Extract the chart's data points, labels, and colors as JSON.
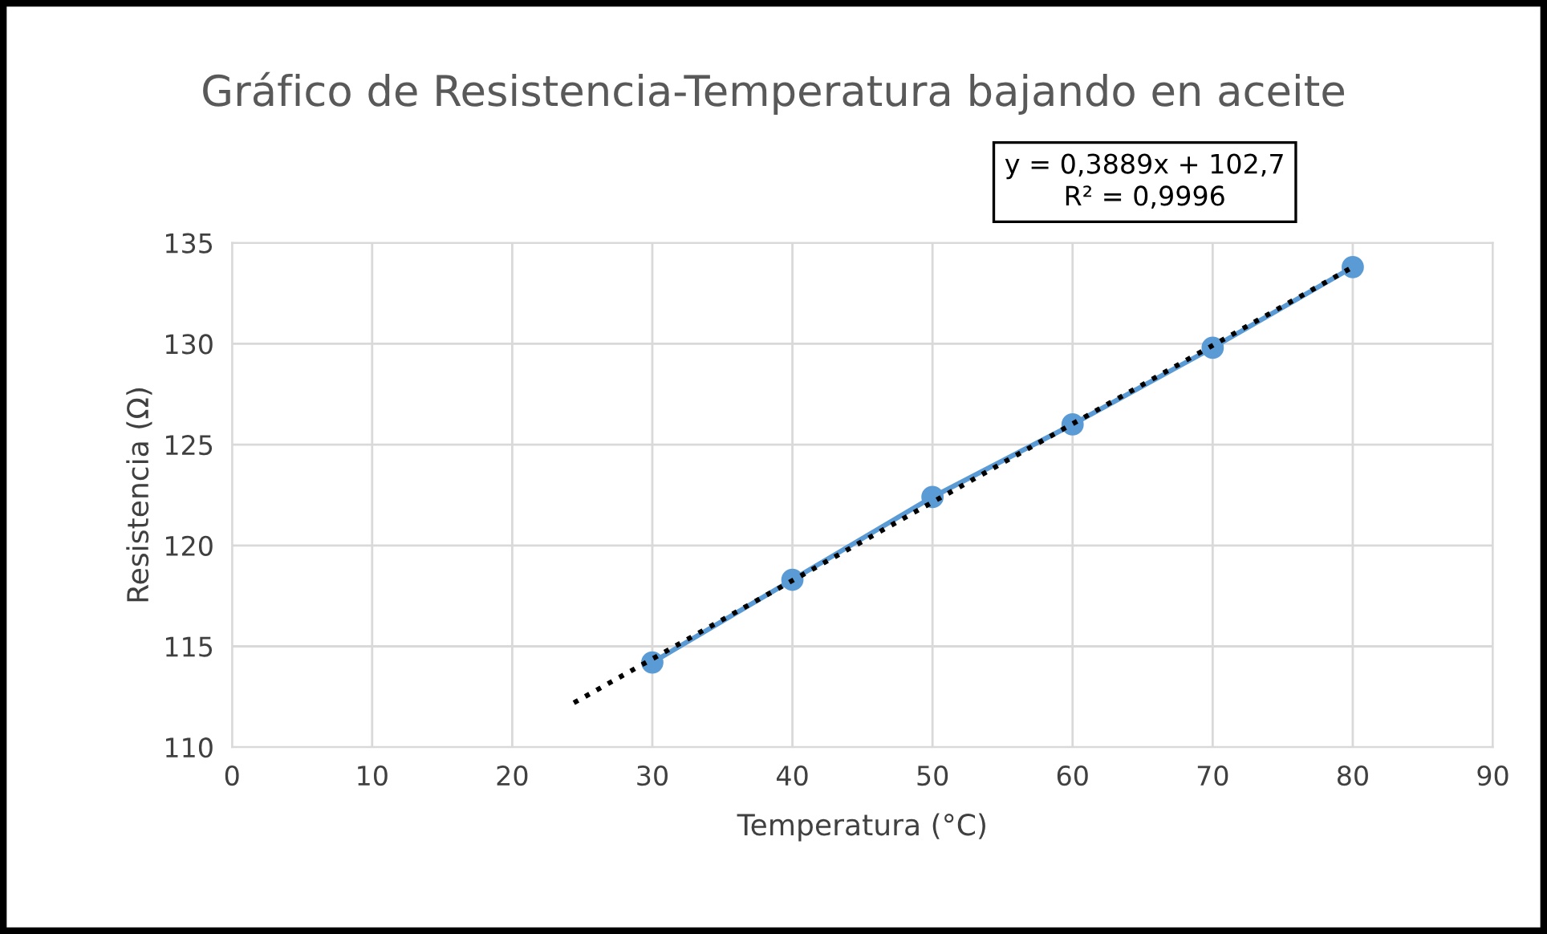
{
  "chart_data": {
    "type": "line",
    "title": "Gráfico de Resistencia-Temperatura bajando en aceite",
    "xlabel": "Temperatura (°C)",
    "ylabel": "Resistencia (Ω)",
    "annotations": [
      "y = 0,3889x + 102,7\nR² = 0,9996"
    ],
    "series": [
      {
        "color": "#5b9bd5",
        "marker": "circle",
        "line_style": "solid",
        "x": [
          30,
          40,
          50,
          60,
          70,
          80
        ],
        "values": [
          114.2,
          118.3,
          122.4,
          126.0,
          129.8,
          133.8
        ]
      },
      {
        "color": "#000000",
        "marker": "none",
        "line_style": "dotted",
        "x": [
          24.4,
          80
        ],
        "values": [
          112.2,
          133.8
        ]
      }
    ],
    "xlim": [
      0,
      90
    ],
    "xticks": [
      0,
      10,
      20,
      30,
      40,
      50,
      60,
      70,
      80,
      90
    ],
    "ylim": [
      110,
      135
    ],
    "yticks": [
      110,
      115,
      120,
      125,
      130,
      135
    ],
    "grid": true,
    "legend": false
  }
}
